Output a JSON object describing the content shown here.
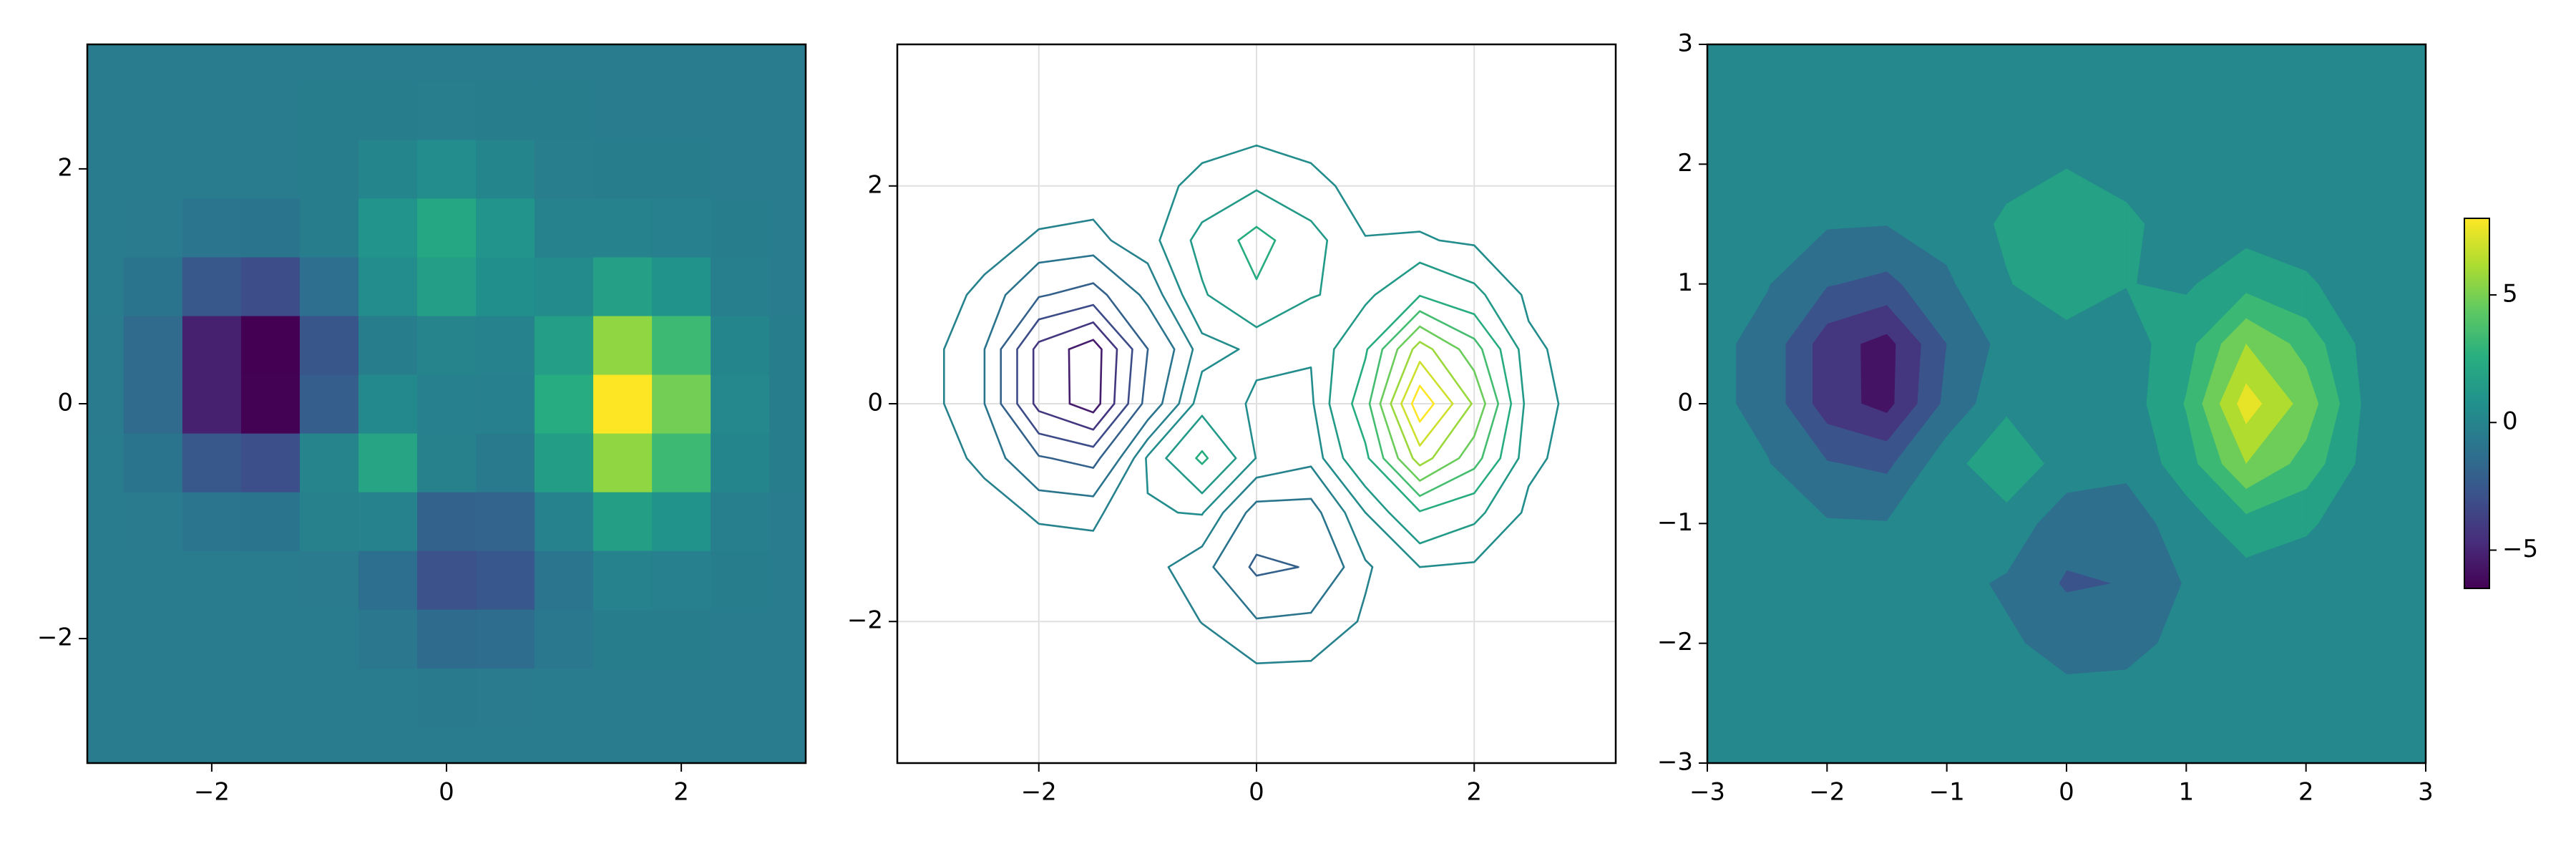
{
  "chart_data": [
    {
      "type": "heatmap",
      "x": [
        -3,
        -2.5,
        -2,
        -1.5,
        -1,
        -0.5,
        0,
        0.5,
        1,
        1.5,
        2,
        2.5,
        3
      ],
      "y": [
        -3,
        -2.5,
        -2,
        -1.5,
        -1,
        -0.5,
        0,
        0.5,
        1,
        1.5,
        2,
        2.5,
        3
      ],
      "z": [
        [
          0,
          0,
          0,
          0,
          0,
          0,
          0,
          0,
          0,
          0,
          0,
          0,
          0
        ],
        [
          0,
          0,
          0,
          0,
          0,
          -0.04,
          -0.11,
          -0.1,
          -0.03,
          0,
          0,
          0,
          0
        ],
        [
          0,
          0,
          0,
          0,
          -0.03,
          -0.31,
          -0.93,
          -0.82,
          -0.21,
          0.02,
          0.02,
          0,
          0
        ],
        [
          0,
          -0.01,
          -0.03,
          -0.04,
          -0.06,
          -0.69,
          -2.2,
          -1.94,
          -0.39,
          0.3,
          0.21,
          0.03,
          0
        ],
        [
          -0.01,
          -0.08,
          -0.37,
          -0.43,
          0.25,
          0.34,
          -1.32,
          -1.3,
          0.3,
          1.91,
          1.21,
          0.16,
          0
        ],
        [
          -0.03,
          -0.43,
          -1.9,
          -2.34,
          0.39,
          2.2,
          0.27,
          -0.12,
          1.77,
          5.48,
          3.43,
          0.45,
          0.01
        ],
        [
          -0.06,
          -0.99,
          -4.33,
          -5.51,
          -1.6,
          0.66,
          0.21,
          0.18,
          2.6,
          7.75,
          4.86,
          0.64,
          0.02
        ],
        [
          -0.06,
          -0.99,
          -4.33,
          -5.54,
          -2.01,
          0.05,
          0.42,
          0.36,
          1.87,
          5.48,
          3.43,
          0.45,
          0.01
        ],
        [
          -0.03,
          -0.43,
          -1.9,
          -2.42,
          -0.75,
          0.9,
          1.85,
          1.04,
          0.8,
          1.94,
          1.21,
          0.16,
          0
        ],
        [
          -0.01,
          -0.08,
          -0.37,
          -0.46,
          0.03,
          1.26,
          2.37,
          1.29,
          0.32,
          0.35,
          0.21,
          0.03,
          0
        ],
        [
          0,
          -0.01,
          -0.03,
          -0.04,
          0.06,
          0.48,
          0.88,
          0.48,
          0.08,
          0.04,
          0.02,
          0,
          0
        ],
        [
          0,
          0,
          0,
          0,
          0.01,
          0.05,
          0.1,
          0.05,
          0.01,
          0,
          0,
          0,
          0
        ],
        [
          0,
          0,
          0,
          0,
          0,
          0,
          0,
          0,
          0,
          0,
          0,
          0,
          0
        ]
      ],
      "colormap": [
        "#440154",
        "#472d7b",
        "#3b528b",
        "#2c728e",
        "#21918c",
        "#28ae80",
        "#5ec962",
        "#addc30",
        "#fde725"
      ],
      "xlim": [
        -3.06,
        3.06
      ],
      "ylim": [
        -3.06,
        3.06
      ],
      "xticks": [
        {
          "value": -2,
          "label": "−2"
        },
        0,
        2
      ],
      "yticks": [
        {
          "value": -2,
          "label": "−2"
        },
        0,
        2
      ]
    },
    {
      "type": "contour",
      "levels": [
        -6,
        -5,
        -4,
        -3,
        -2,
        -1,
        -0.3,
        0.3,
        1,
        2,
        3,
        4,
        5,
        6,
        7
      ],
      "xlim": [
        -3.3,
        3.3
      ],
      "ylim": [
        -3.3,
        3.3
      ],
      "grid": true,
      "xticks": [
        {
          "value": -2,
          "label": "−2"
        },
        0,
        2
      ],
      "yticks": [
        {
          "value": -2,
          "label": "−2"
        },
        0,
        2
      ]
    },
    {
      "type": "contourf",
      "levels": [
        -6.5,
        -5,
        -3.5,
        -2,
        -0.5,
        1,
        2.5,
        4,
        5.5,
        7,
        8
      ],
      "xlim": [
        -3,
        3
      ],
      "ylim": [
        -3,
        3
      ],
      "xticks": [
        {
          "value": -3,
          "label": "−3"
        },
        {
          "value": -2,
          "label": "−2"
        },
        {
          "value": -1,
          "label": "−1"
        },
        0,
        1,
        2,
        3
      ],
      "yticks": [
        {
          "value": -3,
          "label": "−3"
        },
        {
          "value": -2,
          "label": "−2"
        },
        {
          "value": -1,
          "label": "−1"
        },
        0,
        1,
        2,
        3
      ],
      "colorbar": {
        "ticks": [
          {
            "value": -5,
            "label": "−5"
          },
          0,
          5
        ]
      }
    }
  ]
}
